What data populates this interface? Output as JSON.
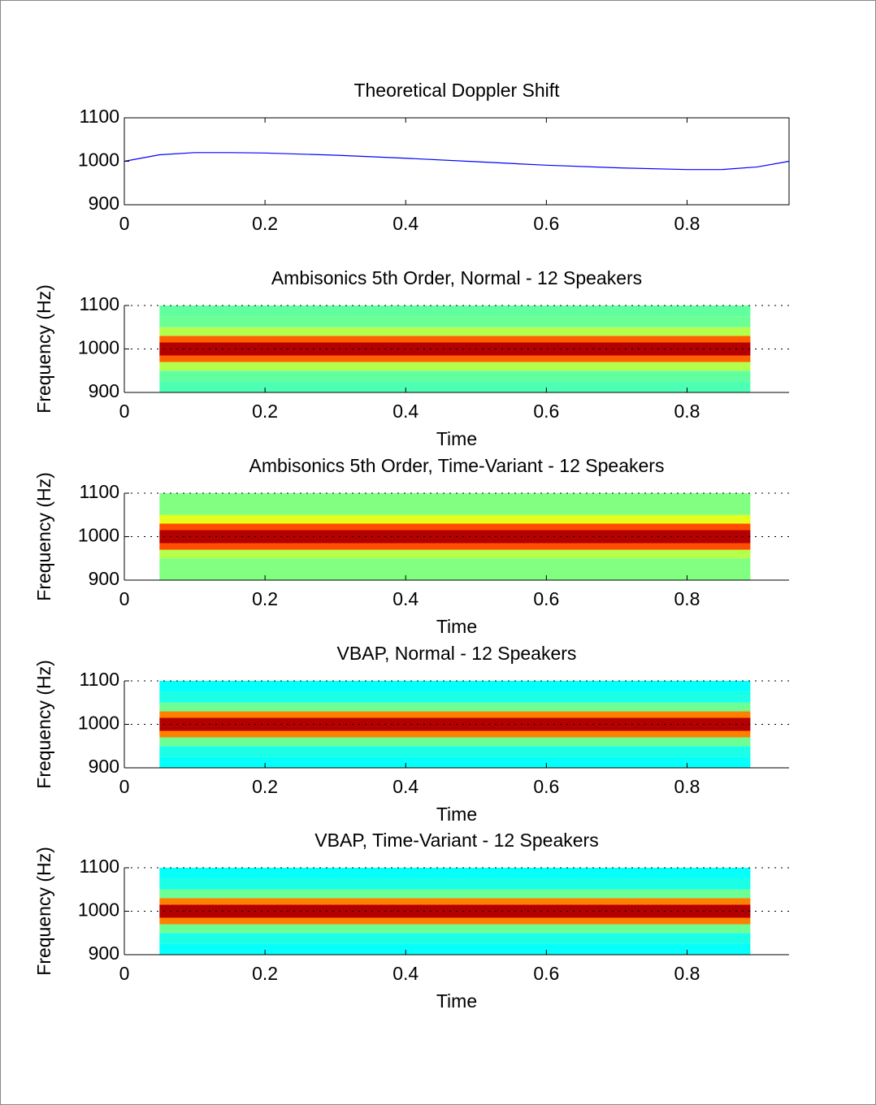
{
  "chart_data": [
    {
      "type": "line",
      "title": "Theoretical Doppler Shift",
      "x": [
        0,
        0.05,
        0.1,
        0.15,
        0.2,
        0.3,
        0.4,
        0.5,
        0.6,
        0.7,
        0.8,
        0.85,
        0.9,
        0.945
      ],
      "values": [
        1000,
        1015,
        1020,
        1020,
        1019,
        1014,
        1007,
        999,
        991,
        985,
        981,
        981,
        987,
        1000
      ],
      "color": "#0000ff",
      "xlim": [
        0,
        0.945
      ],
      "ylim": [
        900,
        1100
      ],
      "xticks": [
        0,
        0.2,
        0.4,
        0.6,
        0.8
      ],
      "yticks": [
        900,
        1000,
        1100
      ],
      "grid": false
    },
    {
      "type": "spectrogram",
      "title": "Ambisonics 5th Order, Normal - 12 Speakers",
      "xlabel": "Time",
      "ylabel": "Frequency (Hz)",
      "time_bins": [
        0.05,
        0.89
      ],
      "freq_bins": [
        900,
        925,
        950,
        970,
        985,
        1015,
        1030,
        1050,
        1075,
        1100
      ],
      "intensity": [
        0.45,
        0.47,
        0.55,
        0.78,
        0.95,
        0.78,
        0.55,
        0.48,
        0.47
      ],
      "colormap": "jet",
      "xlim": [
        0,
        0.945
      ],
      "ylim": [
        900,
        1100
      ],
      "xticks": [
        0,
        0.2,
        0.4,
        0.6,
        0.8
      ],
      "yticks": [
        900,
        1000,
        1100
      ],
      "grid": true
    },
    {
      "type": "spectrogram",
      "title": "Ambisonics 5th Order, Time-Variant - 12 Speakers",
      "xlabel": "Time",
      "ylabel": "Frequency (Hz)",
      "time_bins": [
        0.05,
        0.89
      ],
      "freq_bins": [
        900,
        925,
        950,
        970,
        985,
        1015,
        1030,
        1050,
        1075,
        1100
      ],
      "intensity": [
        0.5,
        0.5,
        0.55,
        0.8,
        0.95,
        0.8,
        0.6,
        0.5,
        0.5
      ],
      "colormap": "jet",
      "xlim": [
        0,
        0.945
      ],
      "ylim": [
        900,
        1100
      ],
      "xticks": [
        0,
        0.2,
        0.4,
        0.6,
        0.8
      ],
      "yticks": [
        900,
        1000,
        1100
      ],
      "grid": true
    },
    {
      "type": "spectrogram",
      "title": "VBAP, Normal - 12 Speakers",
      "xlabel": "Time",
      "ylabel": "Frequency (Hz)",
      "time_bins": [
        0.05,
        0.89
      ],
      "freq_bins": [
        900,
        925,
        950,
        970,
        985,
        1015,
        1030,
        1050,
        1075,
        1100
      ],
      "intensity": [
        0.38,
        0.4,
        0.48,
        0.75,
        0.95,
        0.75,
        0.48,
        0.4,
        0.38
      ],
      "colormap": "jet",
      "xlim": [
        0,
        0.945
      ],
      "ylim": [
        900,
        1100
      ],
      "xticks": [
        0,
        0.2,
        0.4,
        0.6,
        0.8
      ],
      "yticks": [
        900,
        1000,
        1100
      ],
      "grid": true
    },
    {
      "type": "spectrogram",
      "title": "VBAP, Time-Variant - 12 Speakers",
      "xlabel": "Time",
      "ylabel": "Frequency (Hz)",
      "time_bins": [
        0.05,
        0.89
      ],
      "freq_bins": [
        900,
        925,
        950,
        970,
        985,
        1015,
        1030,
        1050,
        1075,
        1100
      ],
      "intensity": [
        0.38,
        0.4,
        0.48,
        0.75,
        0.95,
        0.75,
        0.48,
        0.4,
        0.38
      ],
      "colormap": "jet",
      "xlim": [
        0,
        0.945
      ],
      "ylim": [
        900,
        1100
      ],
      "xticks": [
        0,
        0.2,
        0.4,
        0.6,
        0.8
      ],
      "yticks": [
        900,
        1000,
        1100
      ],
      "grid": true
    }
  ]
}
